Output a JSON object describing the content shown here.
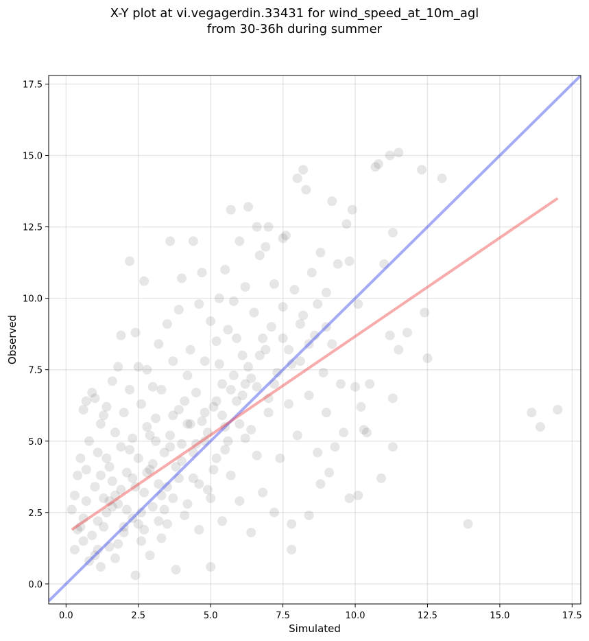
{
  "chart_data": {
    "type": "scatter",
    "title_line1": "X-Y plot at vi.vegagerdin.33431 for wind_speed_at_10m_agl",
    "title_line2": "from 30-36h during summer",
    "xlabel": "Simulated",
    "ylabel": "Observed",
    "xlim": [
      -0.6,
      17.8
    ],
    "ylim": [
      -0.7,
      17.8
    ],
    "xticks": [
      0.0,
      2.5,
      5.0,
      7.5,
      10.0,
      12.5,
      15.0,
      17.5
    ],
    "yticks": [
      0.0,
      2.5,
      5.0,
      7.5,
      10.0,
      12.5,
      15.0,
      17.5
    ],
    "xtick_labels": [
      "0.0",
      "2.5",
      "5.0",
      "7.5",
      "10.0",
      "12.5",
      "15.0",
      "17.5"
    ],
    "ytick_labels": [
      "0.0",
      "2.5",
      "5.0",
      "7.5",
      "10.0",
      "12.5",
      "15.0",
      "17.5"
    ],
    "grid": true,
    "point_color": "#555555",
    "point_opacity": 0.15,
    "reference_line": {
      "x": [
        -0.6,
        17.8
      ],
      "y": [
        -0.6,
        17.8
      ],
      "color": "#4a55ee"
    },
    "regression_line": {
      "x": [
        0.2,
        17.0
      ],
      "y": [
        1.9,
        13.5
      ],
      "color": "#ee4444"
    },
    "points": [
      [
        0.2,
        2.6
      ],
      [
        0.3,
        3.1
      ],
      [
        0.3,
        1.2
      ],
      [
        0.4,
        3.8
      ],
      [
        0.5,
        2.0
      ],
      [
        0.5,
        4.4
      ],
      [
        0.6,
        1.5
      ],
      [
        0.6,
        6.1
      ],
      [
        0.7,
        6.4
      ],
      [
        0.7,
        2.9
      ],
      [
        0.8,
        5.0
      ],
      [
        0.8,
        0.8
      ],
      [
        0.9,
        6.7
      ],
      [
        1.0,
        3.4
      ],
      [
        1.0,
        6.5
      ],
      [
        1.1,
        2.2
      ],
      [
        1.1,
        4.6
      ],
      [
        1.2,
        5.6
      ],
      [
        1.2,
        0.6
      ],
      [
        1.3,
        3.0
      ],
      [
        1.3,
        5.9
      ],
      [
        1.4,
        2.5
      ],
      [
        1.4,
        6.2
      ],
      [
        1.5,
        4.1
      ],
      [
        1.5,
        1.3
      ],
      [
        1.6,
        7.1
      ],
      [
        1.6,
        3.6
      ],
      [
        1.7,
        5.3
      ],
      [
        1.7,
        0.9
      ],
      [
        1.8,
        7.6
      ],
      [
        1.8,
        2.8
      ],
      [
        1.9,
        8.7
      ],
      [
        1.9,
        4.8
      ],
      [
        2.0,
        6.0
      ],
      [
        2.0,
        1.8
      ],
      [
        2.1,
        3.9
      ],
      [
        2.2,
        11.3
      ],
      [
        2.2,
        6.8
      ],
      [
        2.3,
        2.3
      ],
      [
        2.3,
        5.1
      ],
      [
        2.4,
        8.8
      ],
      [
        2.4,
        0.3
      ],
      [
        2.5,
        7.6
      ],
      [
        2.5,
        4.4
      ],
      [
        2.6,
        1.5
      ],
      [
        2.6,
        6.3
      ],
      [
        2.7,
        10.6
      ],
      [
        2.7,
        3.2
      ],
      [
        2.8,
        7.5
      ],
      [
        2.8,
        5.5
      ],
      [
        2.9,
        1.0
      ],
      [
        2.9,
        4.0
      ],
      [
        3.0,
        6.9
      ],
      [
        3.0,
        2.7
      ],
      [
        3.1,
        5.8
      ],
      [
        3.2,
        8.4
      ],
      [
        3.2,
        3.5
      ],
      [
        3.3,
        1.6
      ],
      [
        3.3,
        6.8
      ],
      [
        3.4,
        4.6
      ],
      [
        3.5,
        9.1
      ],
      [
        3.5,
        2.1
      ],
      [
        3.6,
        12.0
      ],
      [
        3.6,
        5.2
      ],
      [
        3.7,
        7.8
      ],
      [
        3.7,
        3.0
      ],
      [
        3.8,
        0.5
      ],
      [
        3.9,
        9.6
      ],
      [
        3.9,
        6.1
      ],
      [
        4.0,
        10.7
      ],
      [
        4.0,
        4.3
      ],
      [
        4.1,
        2.4
      ],
      [
        4.2,
        7.3
      ],
      [
        4.2,
        5.6
      ],
      [
        4.3,
        8.2
      ],
      [
        4.4,
        12.0
      ],
      [
        4.4,
        3.7
      ],
      [
        4.5,
        6.7
      ],
      [
        4.6,
        9.8
      ],
      [
        4.6,
        1.9
      ],
      [
        4.7,
        10.9
      ],
      [
        4.8,
        5.0
      ],
      [
        4.8,
        7.8
      ],
      [
        4.9,
        3.3
      ],
      [
        5.0,
        9.2
      ],
      [
        5.0,
        0.6
      ],
      [
        5.1,
        6.2
      ],
      [
        5.2,
        8.5
      ],
      [
        5.2,
        4.4
      ],
      [
        5.3,
        10.0
      ],
      [
        5.4,
        2.2
      ],
      [
        5.4,
        7.0
      ],
      [
        5.5,
        11.0
      ],
      [
        5.5,
        5.5
      ],
      [
        5.6,
        8.9
      ],
      [
        5.7,
        13.1
      ],
      [
        5.7,
        3.8
      ],
      [
        5.8,
        9.9
      ],
      [
        5.9,
        6.4
      ],
      [
        6.0,
        12.0
      ],
      [
        6.0,
        2.9
      ],
      [
        6.1,
        8.0
      ],
      [
        6.2,
        10.4
      ],
      [
        6.2,
        5.1
      ],
      [
        6.3,
        13.2
      ],
      [
        6.4,
        7.2
      ],
      [
        6.4,
        1.8
      ],
      [
        6.5,
        9.5
      ],
      [
        6.6,
        12.5
      ],
      [
        6.6,
        4.5
      ],
      [
        6.7,
        11.5
      ],
      [
        6.8,
        8.6
      ],
      [
        6.8,
        3.2
      ],
      [
        6.9,
        11.8
      ],
      [
        7.0,
        12.5
      ],
      [
        7.0,
        6.0
      ],
      [
        7.1,
        9.0
      ],
      [
        7.2,
        2.5
      ],
      [
        7.2,
        10.5
      ],
      [
        7.3,
        7.4
      ],
      [
        7.4,
        4.4
      ],
      [
        7.5,
        12.1
      ],
      [
        7.5,
        9.7
      ],
      [
        7.6,
        12.2
      ],
      [
        7.7,
        6.3
      ],
      [
        7.7,
        8.2
      ],
      [
        7.8,
        2.1
      ],
      [
        7.8,
        1.2
      ],
      [
        7.9,
        10.3
      ],
      [
        8.0,
        14.2
      ],
      [
        8.0,
        5.2
      ],
      [
        8.1,
        7.8
      ],
      [
        8.2,
        14.5
      ],
      [
        8.2,
        9.4
      ],
      [
        8.3,
        13.8
      ],
      [
        8.4,
        6.6
      ],
      [
        8.4,
        2.4
      ],
      [
        8.5,
        10.9
      ],
      [
        8.6,
        8.7
      ],
      [
        8.7,
        4.6
      ],
      [
        8.8,
        11.6
      ],
      [
        8.8,
        3.5
      ],
      [
        8.9,
        7.4
      ],
      [
        9.0,
        10.2
      ],
      [
        9.0,
        6.0
      ],
      [
        9.1,
        3.9
      ],
      [
        9.2,
        13.4
      ],
      [
        9.2,
        8.4
      ],
      [
        9.3,
        4.8
      ],
      [
        9.4,
        11.2
      ],
      [
        9.5,
        7.0
      ],
      [
        9.6,
        5.3
      ],
      [
        9.7,
        12.6
      ],
      [
        9.8,
        11.3
      ],
      [
        9.8,
        3.0
      ],
      [
        9.9,
        13.1
      ],
      [
        10.0,
        6.9
      ],
      [
        10.1,
        3.1
      ],
      [
        10.1,
        9.8
      ],
      [
        10.2,
        6.2
      ],
      [
        10.3,
        5.4
      ],
      [
        10.4,
        5.3
      ],
      [
        10.5,
        7.0
      ],
      [
        10.7,
        14.6
      ],
      [
        10.8,
        14.7
      ],
      [
        10.9,
        3.7
      ],
      [
        11.0,
        11.2
      ],
      [
        11.2,
        15.0
      ],
      [
        11.2,
        8.7
      ],
      [
        11.3,
        12.3
      ],
      [
        11.3,
        6.5
      ],
      [
        11.3,
        4.8
      ],
      [
        11.5,
        15.1
      ],
      [
        11.5,
        8.2
      ],
      [
        11.8,
        8.8
      ],
      [
        12.3,
        14.5
      ],
      [
        12.4,
        9.5
      ],
      [
        12.5,
        7.9
      ],
      [
        13.0,
        14.2
      ],
      [
        13.9,
        2.1
      ],
      [
        16.1,
        6.0
      ],
      [
        16.4,
        5.5
      ],
      [
        17.0,
        6.1
      ],
      [
        0.6,
        2.3
      ],
      [
        0.9,
        1.7
      ],
      [
        1.2,
        3.8
      ],
      [
        1.5,
        2.9
      ],
      [
        1.8,
        1.4
      ],
      [
        2.1,
        2.6
      ],
      [
        2.4,
        3.4
      ],
      [
        2.7,
        1.9
      ],
      [
        3.0,
        4.2
      ],
      [
        3.3,
        3.1
      ],
      [
        3.6,
        4.8
      ],
      [
        3.9,
        3.7
      ],
      [
        4.2,
        2.8
      ],
      [
        4.5,
        4.9
      ],
      [
        4.8,
        6.0
      ],
      [
        5.1,
        4.0
      ],
      [
        5.4,
        5.9
      ],
      [
        5.7,
        6.8
      ],
      [
        6.0,
        5.6
      ],
      [
        6.3,
        7.6
      ],
      [
        6.6,
        6.9
      ],
      [
        6.9,
        8.2
      ],
      [
        7.2,
        7.0
      ],
      [
        7.5,
        8.6
      ],
      [
        7.8,
        7.7
      ],
      [
        8.1,
        9.1
      ],
      [
        8.4,
        8.4
      ],
      [
        8.7,
        9.8
      ],
      [
        9.0,
        9.0
      ],
      [
        1.0,
        1.0
      ],
      [
        1.3,
        2.0
      ],
      [
        1.6,
        2.7
      ],
      [
        1.9,
        3.3
      ],
      [
        2.2,
        4.7
      ],
      [
        2.5,
        2.1
      ],
      [
        2.8,
        3.9
      ],
      [
        3.1,
        5.0
      ],
      [
        3.4,
        2.6
      ],
      [
        3.7,
        5.9
      ],
      [
        4.0,
        4.9
      ],
      [
        4.3,
        5.6
      ],
      [
        4.6,
        3.5
      ],
      [
        4.9,
        5.3
      ],
      [
        5.2,
        6.4
      ],
      [
        5.5,
        4.7
      ],
      [
        5.8,
        7.3
      ],
      [
        6.1,
        6.6
      ],
      [
        6.4,
        5.4
      ],
      [
        6.7,
        8.0
      ],
      [
        7.0,
        6.5
      ],
      [
        0.4,
        1.9
      ],
      [
        0.7,
        4.0
      ],
      [
        1.1,
        1.2
      ],
      [
        1.4,
        4.4
      ],
      [
        1.7,
        3.1
      ],
      [
        2.0,
        2.0
      ],
      [
        2.3,
        3.7
      ],
      [
        2.6,
        2.5
      ],
      [
        2.9,
        5.2
      ],
      [
        3.2,
        2.2
      ],
      [
        3.5,
        3.4
      ],
      [
        3.8,
        4.1
      ],
      [
        4.1,
        6.4
      ],
      [
        4.4,
        4.6
      ],
      [
        4.7,
        5.7
      ],
      [
        5.0,
        3.0
      ],
      [
        5.3,
        7.7
      ],
      [
        5.6,
        5.0
      ],
      [
        5.9,
        8.6
      ],
      [
        6.2,
        7.0
      ]
    ]
  }
}
